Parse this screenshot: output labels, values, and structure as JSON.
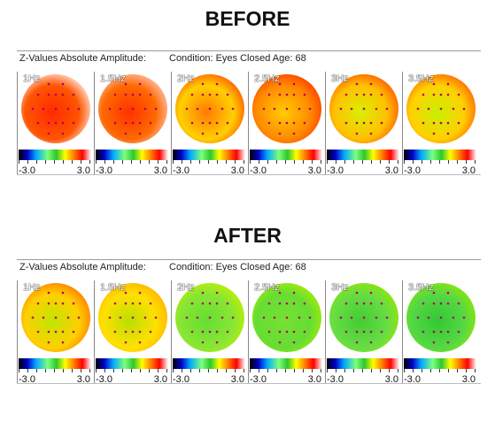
{
  "headings": {
    "before": "BEFORE",
    "after": "AFTER"
  },
  "before": {
    "measure": "Z-Values Absolute Amplitude:",
    "condition": "Condition: Eyes Closed  Age:  68",
    "maps": [
      {
        "freq": "1Hz",
        "colors": [
          "#ff2a00",
          "#ff5500",
          "#ffffff"
        ],
        "min": "-3.0",
        "max": "3.0"
      },
      {
        "freq": "1.5Hz",
        "colors": [
          "#ff3000",
          "#ff6a00",
          "#ffd0d0"
        ],
        "min": "-3.0",
        "max": "3.0"
      },
      {
        "freq": "2Hz",
        "colors": [
          "#ff7a00",
          "#ffd000",
          "#ff4000"
        ],
        "min": "-3.0",
        "max": "3.0"
      },
      {
        "freq": "2.5Hz",
        "colors": [
          "#ffcc00",
          "#ff8a00",
          "#ff3000"
        ],
        "min": "-3.0",
        "max": "3.0"
      },
      {
        "freq": "3Hz",
        "colors": [
          "#d8f000",
          "#ffc000",
          "#ff4400"
        ],
        "min": "-3.0",
        "max": "3.0"
      },
      {
        "freq": "3.5Hz",
        "colors": [
          "#c8f000",
          "#ffd000",
          "#ff5000"
        ],
        "min": "-3.0",
        "max": "3.0"
      }
    ]
  },
  "after": {
    "measure": "Z-Values Absolute Amplitude:",
    "condition": "Condition: Eyes Closed  Age:  68",
    "maps": [
      {
        "freq": "1Hz",
        "colors": [
          "#bfe600",
          "#ffd000",
          "#ff6a00"
        ],
        "min": "-3.0",
        "max": "3.0"
      },
      {
        "freq": "1.5Hz",
        "colors": [
          "#b8e000",
          "#ffe000",
          "#ffaa00"
        ],
        "min": "-3.0",
        "max": "3.0"
      },
      {
        "freq": "2Hz",
        "colors": [
          "#66dd33",
          "#88e633",
          "#c8f000"
        ],
        "min": "-3.0",
        "max": "3.0"
      },
      {
        "freq": "2.5Hz",
        "colors": [
          "#77e033",
          "#66dd33",
          "#b0ee00"
        ],
        "min": "-3.0",
        "max": "3.0"
      },
      {
        "freq": "3Hz",
        "colors": [
          "#44cc33",
          "#66dd44",
          "#9ae800"
        ],
        "min": "-3.0",
        "max": "3.0"
      },
      {
        "freq": "3.5Hz",
        "colors": [
          "#33c833",
          "#55d844",
          "#99e800"
        ],
        "min": "-3.0",
        "max": "3.0"
      }
    ]
  }
}
